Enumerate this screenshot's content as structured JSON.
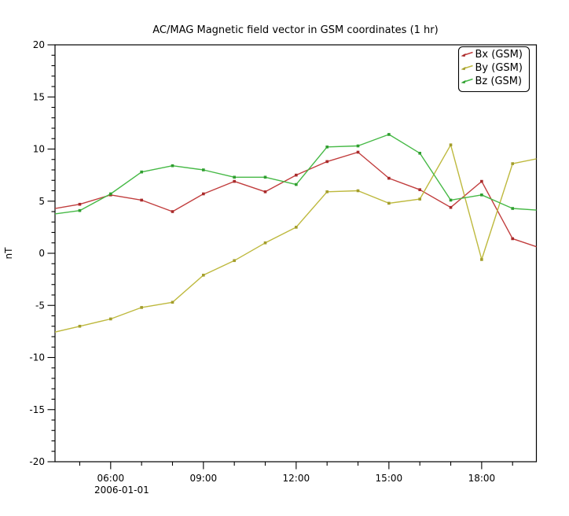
{
  "window": {
    "background": "#ffffff"
  },
  "chart_data": {
    "type": "line",
    "title": "AC/MAG  Magnetic field vector in GSM coordinates (1 hr)",
    "ylabel": "nT",
    "xlabel_date": "2006-01-01",
    "ylim": [
      -20,
      20
    ],
    "y_major_step": 5,
    "y_minor_step": 1,
    "y_tick_labels": [
      "20",
      "15",
      "10",
      "5",
      "0",
      "-5",
      "-10",
      "-15",
      "-20"
    ],
    "xlim_hours": [
      4.2,
      19.77
    ],
    "x_minor_every_hours": 1,
    "x_major_ticks": [
      {
        "hour": 6,
        "label": "06:00"
      },
      {
        "hour": 9,
        "label": "09:00"
      },
      {
        "hour": 12,
        "label": "12:00"
      },
      {
        "hour": 15,
        "label": "15:00"
      },
      {
        "hour": 18,
        "label": "18:00"
      }
    ],
    "grid": false,
    "legend_position": "top-right",
    "x": [
      "04:00",
      "05:00",
      "06:00",
      "07:00",
      "08:00",
      "09:00",
      "10:00",
      "11:00",
      "12:00",
      "13:00",
      "14:00",
      "15:00",
      "16:00",
      "17:00",
      "18:00",
      "19:00",
      "20:00"
    ],
    "x_hours": [
      4,
      5,
      6,
      7,
      8,
      9,
      10,
      11,
      12,
      13,
      14,
      15,
      16,
      17,
      18,
      19,
      20
    ],
    "series": [
      {
        "name": "Bx (GSM)",
        "color": "#c13d3d",
        "marker_color": "#a82a2a",
        "values": [
          4.2,
          4.7,
          5.6,
          5.1,
          4.0,
          5.7,
          6.9,
          5.9,
          7.5,
          8.8,
          9.7,
          7.2,
          6.1,
          4.4,
          6.9,
          1.4,
          0.4
        ]
      },
      {
        "name": "By (GSM)",
        "color": "#beb93e",
        "marker_color": "#a39d2b",
        "values": [
          -7.7,
          -7.0,
          -6.3,
          -5.2,
          -4.7,
          -2.1,
          -0.7,
          1.0,
          2.5,
          5.9,
          6.0,
          4.8,
          5.2,
          10.4,
          -0.6,
          8.6,
          9.2
        ]
      },
      {
        "name": "Bz (GSM)",
        "color": "#46b946",
        "marker_color": "#2f9e2f",
        "values": [
          3.7,
          4.1,
          5.7,
          7.8,
          8.4,
          8.0,
          7.3,
          7.3,
          6.6,
          10.2,
          10.3,
          11.4,
          9.6,
          5.1,
          5.6,
          4.3,
          4.1
        ]
      }
    ]
  }
}
